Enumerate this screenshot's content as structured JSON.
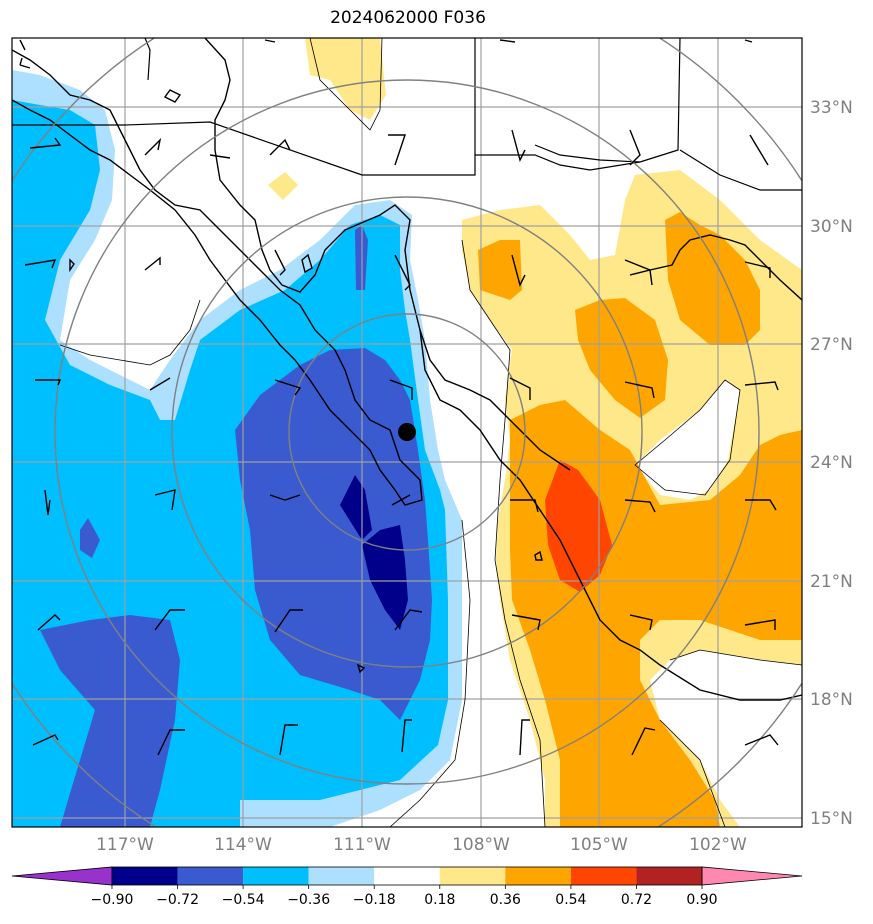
{
  "title": "2024062000 F036",
  "map": {
    "lon_labels": [
      "117°W",
      "114°W",
      "111°W",
      "108°W",
      "105°W",
      "102°W"
    ],
    "lat_labels": [
      "33°N",
      "30°N",
      "27°N",
      "24°N",
      "21°N",
      "18°N",
      "15°N"
    ],
    "center_marker": "filled black circle at range-ring center",
    "overlays": [
      "coastlines",
      "state borders",
      "lat/lon gridlines",
      "range rings",
      "wind barbs"
    ]
  },
  "colorbar": {
    "ticks": [
      "−0.90",
      "−0.72",
      "−0.54",
      "−0.36",
      "−0.18",
      "0.18",
      "0.36",
      "0.54",
      "0.72",
      "0.90"
    ],
    "colors": [
      "#9932CC",
      "#00008B",
      "#3A5BD0",
      "#00BFFF",
      "#ADDFFF",
      "#FFFFFF",
      "#FFE88A",
      "#FFA500",
      "#FF4500",
      "#B22222",
      "#FF88B0"
    ]
  }
}
